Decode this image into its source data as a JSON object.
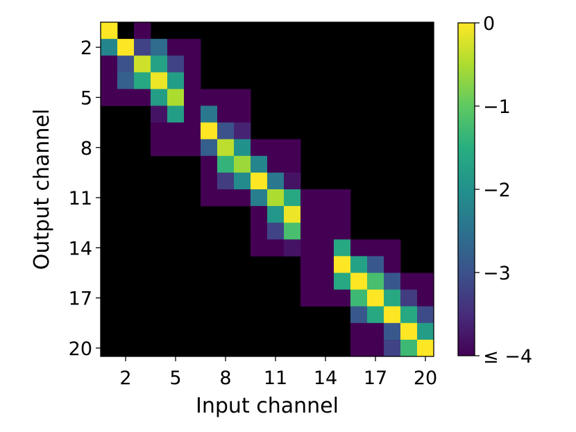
{
  "chart_data": {
    "type": "heatmap",
    "xlabel": "Input channel",
    "ylabel": "Output channel",
    "x_ticks": [
      2,
      5,
      8,
      11,
      14,
      17,
      20
    ],
    "y_ticks": [
      2,
      5,
      8,
      11,
      14,
      17,
      20
    ],
    "colorbar": {
      "range": [
        -4,
        0
      ],
      "ticks": [
        0,
        -1,
        -2,
        -3,
        -4
      ],
      "tick_labels": [
        "0",
        "−1",
        "−2",
        "−3",
        "≤ −4"
      ],
      "colormap": "viridis",
      "below_range_color": "#000000"
    },
    "null_value_meaning": "not drawn (black background)",
    "rows": 20,
    "cols": 20,
    "matrix": [
      [
        0,
        null,
        -4,
        null,
        null,
        null,
        null,
        null,
        null,
        null,
        null,
        null,
        null,
        null,
        null,
        null,
        null,
        null,
        null,
        null
      ],
      [
        -2.2,
        0,
        -3.2,
        -2.6,
        -4,
        -4,
        null,
        null,
        null,
        null,
        null,
        null,
        null,
        null,
        null,
        null,
        null,
        null,
        null,
        null
      ],
      [
        -4,
        -3,
        -0.3,
        -1.7,
        -3.2,
        -4,
        null,
        null,
        null,
        null,
        null,
        null,
        null,
        null,
        null,
        null,
        null,
        null,
        null,
        null
      ],
      [
        -4,
        -2.8,
        -1.6,
        -0.1,
        -1.8,
        -4,
        null,
        null,
        null,
        null,
        null,
        null,
        null,
        null,
        null,
        null,
        null,
        null,
        null,
        null
      ],
      [
        -4,
        -4,
        -4,
        -1.8,
        -0.5,
        -4,
        -4,
        -4,
        -4,
        null,
        null,
        null,
        null,
        null,
        null,
        null,
        null,
        null,
        null,
        null
      ],
      [
        null,
        null,
        null,
        -3.8,
        -1.8,
        -4,
        -2.4,
        -4,
        -4,
        null,
        null,
        null,
        null,
        null,
        null,
        null,
        null,
        null,
        null,
        null
      ],
      [
        null,
        null,
        null,
        -4,
        -4,
        -4,
        0,
        -3,
        -3.6,
        null,
        null,
        null,
        null,
        null,
        null,
        null,
        null,
        null,
        null,
        null
      ],
      [
        null,
        null,
        null,
        -4,
        -4,
        -4,
        -2.8,
        -0.4,
        -2,
        -4,
        -4,
        -4,
        null,
        null,
        null,
        null,
        null,
        null,
        null,
        null
      ],
      [
        null,
        null,
        null,
        null,
        null,
        null,
        -4,
        -1.4,
        -0.6,
        -2.2,
        -4,
        -4,
        null,
        null,
        null,
        null,
        null,
        null,
        null,
        null
      ],
      [
        null,
        null,
        null,
        null,
        null,
        null,
        -4,
        -3.3,
        -2.1,
        0,
        -2.4,
        -3.8,
        null,
        null,
        null,
        null,
        null,
        null,
        null,
        null
      ],
      [
        null,
        null,
        null,
        null,
        null,
        null,
        -4,
        -4,
        -4,
        -2.3,
        -0.5,
        -1.6,
        -4,
        -4,
        -4,
        null,
        null,
        null,
        null,
        null
      ],
      [
        null,
        null,
        null,
        null,
        null,
        null,
        null,
        null,
        null,
        -4,
        -1.9,
        -0.1,
        -4,
        -4,
        -4,
        null,
        null,
        null,
        null,
        null
      ],
      [
        null,
        null,
        null,
        null,
        null,
        null,
        null,
        null,
        null,
        -4,
        -3.2,
        -1.2,
        -4,
        -4,
        -4,
        null,
        null,
        null,
        null,
        null
      ],
      [
        null,
        null,
        null,
        null,
        null,
        null,
        null,
        null,
        null,
        -4,
        -4,
        -3.8,
        -4,
        -4,
        -1.6,
        -4,
        -4,
        -4,
        null,
        null
      ],
      [
        null,
        null,
        null,
        null,
        null,
        null,
        null,
        null,
        null,
        null,
        null,
        null,
        -4,
        -4,
        0,
        -1.7,
        -2.9,
        -4,
        null,
        null
      ],
      [
        null,
        null,
        null,
        null,
        null,
        null,
        null,
        null,
        null,
        null,
        null,
        null,
        -4,
        -4,
        -1.6,
        0,
        -1.2,
        -2.9,
        -4,
        -4
      ],
      [
        null,
        null,
        null,
        null,
        null,
        null,
        null,
        null,
        null,
        null,
        null,
        null,
        -4,
        -4,
        -4,
        -1.3,
        0,
        -1.6,
        -3.3,
        -4
      ],
      [
        null,
        null,
        null,
        null,
        null,
        null,
        null,
        null,
        null,
        null,
        null,
        null,
        null,
        null,
        null,
        -2.9,
        -1.6,
        0,
        -1.6,
        -3.1
      ],
      [
        null,
        null,
        null,
        null,
        null,
        null,
        null,
        null,
        null,
        null,
        null,
        null,
        null,
        null,
        null,
        -4,
        -4,
        -2.9,
        0,
        -1.8
      ],
      [
        null,
        null,
        null,
        null,
        null,
        null,
        null,
        null,
        null,
        null,
        null,
        null,
        null,
        null,
        null,
        -4,
        -4,
        -3.2,
        -1.3,
        0
      ]
    ]
  }
}
